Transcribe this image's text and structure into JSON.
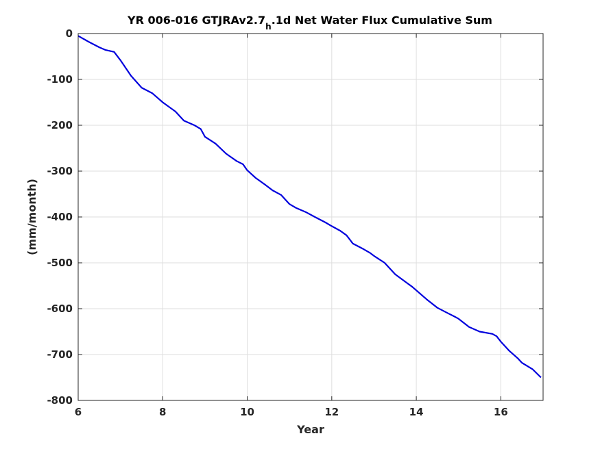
{
  "chart_data": {
    "type": "line",
    "title_main": "YR 006-016 GTJRAv2.7",
    "title_sub": "h",
    "title_rest": ".1d Net Water Flux Cumulative Sum",
    "xlabel": "Year",
    "ylabel": "(mm/month)",
    "xlim": [
      6,
      17
    ],
    "ylim": [
      -800,
      0
    ],
    "xticks": [
      6,
      8,
      10,
      12,
      14,
      16
    ],
    "yticks": [
      0,
      -100,
      -200,
      -300,
      -400,
      -500,
      -600,
      -700,
      -800
    ],
    "grid": true,
    "color": "#0000dd",
    "series": [
      {
        "x": [
          6.0,
          6.25,
          6.5,
          6.65,
          6.85,
          7.0,
          7.25,
          7.5,
          7.75,
          7.9,
          8.0,
          8.3,
          8.5,
          8.75,
          8.9,
          9.0,
          9.25,
          9.5,
          9.75,
          9.9,
          10.0,
          10.2,
          10.4,
          10.6,
          10.8,
          10.9,
          11.0,
          11.15,
          11.4,
          11.6,
          11.85,
          12.0,
          12.2,
          12.35,
          12.5,
          12.75,
          12.9,
          13.0,
          13.25,
          13.5,
          13.75,
          13.9,
          14.0,
          14.25,
          14.5,
          14.75,
          14.9,
          15.0,
          15.25,
          15.5,
          15.8,
          15.9,
          16.0,
          16.2,
          16.4,
          16.5,
          16.75,
          16.95
        ],
        "y": [
          -5,
          -18,
          -30,
          -36,
          -40,
          -58,
          -92,
          -118,
          -130,
          -142,
          -150,
          -170,
          -190,
          -200,
          -208,
          -225,
          -240,
          -262,
          -278,
          -285,
          -298,
          -315,
          -328,
          -342,
          -352,
          -362,
          -372,
          -380,
          -390,
          -400,
          -412,
          -420,
          -430,
          -440,
          -458,
          -470,
          -478,
          -485,
          -500,
          -525,
          -542,
          -552,
          -560,
          -580,
          -598,
          -610,
          -617,
          -622,
          -640,
          -650,
          -655,
          -660,
          -672,
          -692,
          -708,
          -718,
          -732,
          -750
        ]
      }
    ]
  }
}
